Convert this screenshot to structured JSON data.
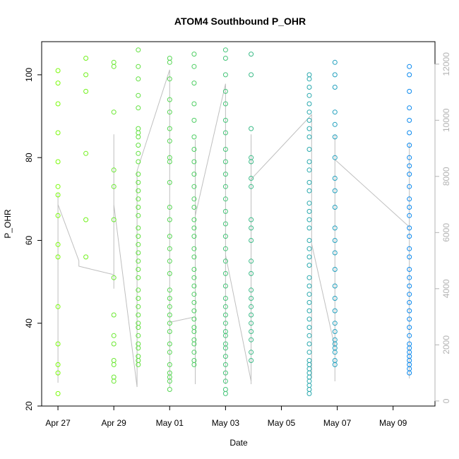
{
  "chart_data": {
    "type": "scatter",
    "title": "ATOM4 Southbound P_OHR",
    "xlabel": "Date",
    "ylabel": "P_OHR",
    "xlim": [
      "2024-04-26T10:00",
      "2024-05-10T12:00"
    ],
    "ylim": [
      20,
      108
    ],
    "y2lim": [
      -180,
      12800
    ],
    "x_ticks": [
      {
        "date": "2024-04-27",
        "label": "Apr 27"
      },
      {
        "date": "2024-04-29",
        "label": "Apr 29"
      },
      {
        "date": "2024-05-01",
        "label": "May 01"
      },
      {
        "date": "2024-05-03",
        "label": "May 03"
      },
      {
        "date": "2024-05-05",
        "label": "May 05"
      },
      {
        "date": "2024-05-07",
        "label": "May 07"
      },
      {
        "date": "2024-05-09",
        "label": "May 09"
      }
    ],
    "y_ticks": [
      20,
      40,
      60,
      80,
      100
    ],
    "y2_ticks": [
      0,
      2000,
      4000,
      6000,
      8000,
      10000,
      12000
    ],
    "grid": false,
    "legend": "none",
    "colors": {
      "points_start": "#80ff00",
      "points_end": "#0080ff",
      "secondary_line": "#bfbfbf",
      "secondary_axis": "#b3b3b3"
    },
    "points": [
      {
        "x": "2024-04-27T00:00",
        "y": [
          101,
          98,
          93,
          86,
          79,
          73,
          71,
          66,
          59,
          56,
          44,
          35,
          30,
          28,
          23
        ]
      },
      {
        "x": "2024-04-28T00:00",
        "y": [
          104,
          100,
          96,
          81,
          65,
          56
        ]
      },
      {
        "x": "2024-04-29T00:00",
        "y": [
          103,
          102,
          91,
          77,
          73,
          65,
          51,
          42,
          37,
          35,
          31,
          30,
          27,
          26
        ]
      },
      {
        "x": "2024-04-29T21:00",
        "y": [
          106,
          102,
          99,
          95,
          92,
          87,
          86,
          85,
          83,
          81,
          79,
          76,
          74,
          72,
          70,
          68,
          66,
          63,
          61,
          59,
          57,
          55,
          53,
          51,
          48,
          46,
          44,
          42,
          40,
          39,
          37,
          35,
          34,
          32,
          31,
          30
        ]
      },
      {
        "x": "2024-05-01T00:00",
        "y": [
          104,
          103,
          99,
          94,
          91,
          87,
          84,
          80,
          79,
          74,
          68,
          65,
          61,
          58,
          55,
          52,
          48,
          46,
          44,
          42,
          40,
          38,
          35,
          33,
          30,
          28,
          27,
          26,
          24
        ]
      },
      {
        "x": "2024-05-01T21:00",
        "y": [
          105,
          102,
          98,
          93,
          89,
          85,
          82,
          79,
          76,
          73,
          70,
          68,
          65,
          63,
          61,
          58,
          56,
          53,
          51,
          49,
          47,
          45,
          43,
          41,
          39,
          38,
          36,
          35,
          33,
          31,
          30
        ]
      },
      {
        "x": "2024-05-03T00:00",
        "y": [
          106,
          104,
          100,
          96,
          93,
          89,
          86,
          82,
          79,
          76,
          73,
          70,
          67,
          64,
          61,
          58,
          55,
          52,
          49,
          46,
          44,
          42,
          40,
          38,
          37,
          35,
          34,
          32,
          30,
          28,
          26,
          24,
          23
        ]
      },
      {
        "x": "2024-05-03T22:00",
        "y": [
          105,
          100,
          87,
          80,
          79,
          75,
          73,
          65,
          63,
          60,
          55,
          52,
          48,
          46,
          44,
          42,
          40,
          38,
          36,
          33,
          31
        ]
      },
      {
        "x": "2024-05-06T00:00",
        "y": [
          100,
          99,
          97,
          95,
          93,
          91,
          89,
          87,
          85,
          82,
          79,
          77,
          74,
          72,
          69,
          67,
          65,
          63,
          60,
          58,
          56,
          54,
          51,
          49,
          47,
          45,
          43,
          41,
          39,
          37,
          35,
          33,
          31,
          30,
          29,
          28,
          27,
          26,
          25,
          24,
          23
        ]
      },
      {
        "x": "2024-05-06T22:00",
        "y": [
          103,
          100,
          97,
          91,
          88,
          85,
          80,
          75,
          72,
          68,
          63,
          60,
          57,
          53,
          49,
          46,
          43,
          40,
          38,
          36,
          35,
          34,
          33,
          31,
          30
        ]
      },
      {
        "x": "2024-05-09T14:00",
        "y": [
          102,
          100,
          96,
          92,
          89,
          86,
          83,
          80,
          78,
          76,
          73,
          70,
          68,
          66,
          63,
          61,
          58,
          56,
          53,
          51,
          49,
          47,
          45,
          43,
          41,
          39,
          37,
          35,
          34,
          33,
          32,
          31,
          30,
          29,
          28
        ]
      }
    ],
    "secondary_series": [
      {
        "x": "2024-04-27T00:00",
        "y2": [
          7000,
          7400,
          6900,
          700,
          7200,
          650,
          7000
        ]
      },
      {
        "x": "2024-04-27T18:00",
        "y2": [
          5000,
          4800
        ]
      },
      {
        "x": "2024-04-29T00:00",
        "y2": [
          4500,
          9500,
          4000,
          7000
        ]
      },
      {
        "x": "2024-04-29T20:00",
        "y2": [
          500,
          4300,
          5200,
          7600,
          3500,
          6500,
          8200
        ]
      },
      {
        "x": "2024-05-01T00:00",
        "y2": [
          11800,
          500,
          8300,
          2800
        ]
      },
      {
        "x": "2024-05-01T22:00",
        "y2": [
          3000,
          9300,
          600,
          5800,
          7200,
          4800,
          6600
        ]
      },
      {
        "x": "2024-05-03T00:00",
        "y2": [
          11300,
          600,
          4300,
          9000,
          3400,
          6500,
          5200
        ]
      },
      {
        "x": "2024-05-03T22:00",
        "y2": [
          700,
          5000,
          9500,
          600,
          7900
        ]
      },
      {
        "x": "2024-05-06T02:00",
        "y2": [
          10200,
          800,
          6100,
          4300,
          7700,
          1700,
          9000,
          5600
        ]
      },
      {
        "x": "2024-05-06T22:00",
        "y2": [
          1900,
          9500,
          700,
          5300,
          7100,
          3900,
          8600
        ]
      },
      {
        "x": "2024-05-09T14:00",
        "y2": [
          6200,
          9200,
          800,
          4400,
          7600,
          2700,
          8700,
          3300
        ]
      }
    ]
  }
}
